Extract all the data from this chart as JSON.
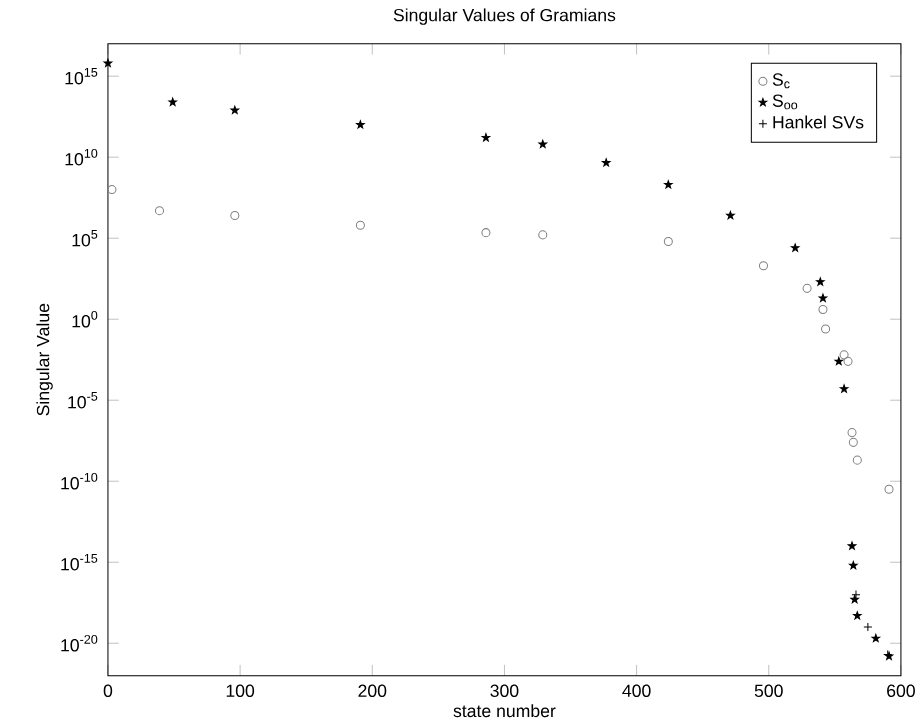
{
  "chart_data": {
    "type": "scatter",
    "title": "Singular Values of Gramians",
    "xlabel": "state number",
    "ylabel": "Singular Value",
    "xlim": [
      0,
      600
    ],
    "xticks": [
      0,
      100,
      200,
      300,
      400,
      500,
      600
    ],
    "ylim": [
      1e-22,
      1e+17
    ],
    "yticks": [
      {
        "value": 1e-20,
        "label": "10$^{-20}$"
      },
      {
        "value": 1e-15,
        "label": "10$^{-15}$"
      },
      {
        "value": 1e-10,
        "label": "10$^{-10}$"
      },
      {
        "value": 1e-05,
        "label": "10$^{-5}$"
      },
      {
        "value": 1,
        "label": "10$^{0}$"
      },
      {
        "value": 100000.0,
        "label": "10$^{5}$"
      },
      {
        "value": 10000000000.0,
        "label": "10$^{10}$"
      },
      {
        "value": 1000000000000000.0,
        "label": "10$^{15}$"
      }
    ],
    "log": "y",
    "legend": "top right",
    "grid": false,
    "series": [
      {
        "name": "S$_{c}$",
        "color": "#808080",
        "marker": "circle",
        "x": [
          3,
          39,
          96,
          191,
          286,
          329,
          424,
          496,
          529,
          541,
          543,
          557,
          560,
          563,
          564,
          567,
          591
        ],
        "values": [
          100000000.0,
          5000000.0,
          2500000.0,
          630000.0,
          220000.0,
          160000.0,
          63000.0,
          2000.0,
          80,
          4,
          0.25,
          0.0063,
          0.0025,
          1e-07,
          2.5e-08,
          2e-09,
          3.2e-11
        ]
      },
      {
        "name": "S$_{oo}$",
        "color": "#000000",
        "marker": "star",
        "x": [
          0,
          49,
          96,
          191,
          286,
          329,
          377,
          424,
          471,
          520,
          539,
          541,
          553,
          557,
          563,
          564,
          565,
          567,
          581,
          591
        ],
        "values": [
          6300000000000000.0,
          25000000000000.0,
          7900000000000.0,
          1000000000000.0,
          160000000000.0,
          63000000000.0,
          4500000000.0,
          200000000.0,
          2500000.0,
          25000.0,
          200,
          20,
          0.0025,
          5e-05,
          1e-14,
          6.3e-16,
          5e-18,
          5e-19,
          2e-20,
          1.6e-21
        ]
      },
      {
        "name": "Hankel SVs",
        "color": "#000000",
        "marker": "cross",
        "x": [
          566,
          575,
          590
        ],
        "values": [
          1e-17,
          1e-19,
          2e-21
        ]
      }
    ]
  }
}
